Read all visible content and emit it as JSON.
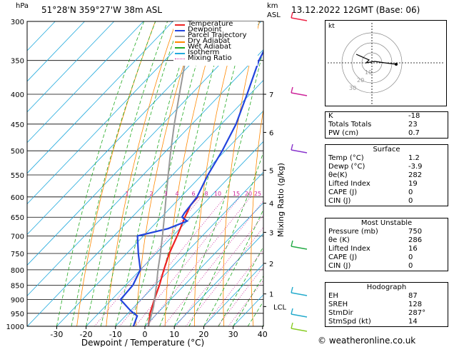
{
  "header": {
    "location": "51°28'N  359°27'W  38m  ASL",
    "hpa_unit": "hPa",
    "km_unit": "km",
    "asl_unit": "ASL",
    "datetime": "13.12.2022  12GMT  (Base: 06)"
  },
  "legend": [
    {
      "label": "Temperature",
      "color": "#ee2222",
      "style": "solid"
    },
    {
      "label": "Dewpoint",
      "color": "#2244dd",
      "style": "solid"
    },
    {
      "label": "Parcel Trajectory",
      "color": "#999999",
      "style": "solid"
    },
    {
      "label": "Dry Adiabat",
      "color": "#ff8800",
      "style": "solid"
    },
    {
      "label": "Wet Adiabat",
      "color": "#22aa22",
      "style": "solid"
    },
    {
      "label": "Isotherm",
      "color": "#22aadd",
      "style": "solid"
    },
    {
      "label": "Mixing Ratio",
      "color": "#cc2299",
      "style": "dotted"
    }
  ],
  "chart_data": {
    "type": "line",
    "title": "Skew-T log-P diagram",
    "xlabel": "Dewpoint / Temperature (°C)",
    "ylabel": "hPa",
    "y2label": "Mixing Ratio (g/kg)",
    "xlim": [
      -40,
      40
    ],
    "ylim": [
      1000,
      300
    ],
    "x_ticks": [
      "-30",
      "-20",
      "-10",
      "0",
      "10",
      "20",
      "30",
      "40"
    ],
    "pressure_levels": [
      "300",
      "350",
      "400",
      "450",
      "500",
      "550",
      "600",
      "650",
      "700",
      "750",
      "800",
      "850",
      "900",
      "950",
      "1000"
    ],
    "km_ticks": [
      {
        "label": "7",
        "p": 400
      },
      {
        "label": "6",
        "p": 465
      },
      {
        "label": "5",
        "p": 540
      },
      {
        "label": "4",
        "p": 615
      },
      {
        "label": "3",
        "p": 690
      },
      {
        "label": "2",
        "p": 780
      },
      {
        "label": "1",
        "p": 880
      },
      {
        "label": "LCL",
        "p": 925
      }
    ],
    "mixing_ratio_labels": [
      "1",
      "2",
      "3",
      "4",
      "6",
      "8",
      "10",
      "15",
      "20",
      "25"
    ],
    "series": [
      {
        "name": "Temperature",
        "color": "#ee2222",
        "points": [
          [
            1000,
            1.2
          ],
          [
            950,
            -2.5
          ],
          [
            900,
            -5.5
          ],
          [
            850,
            -8.5
          ],
          [
            800,
            -12
          ],
          [
            750,
            -15.5
          ],
          [
            700,
            -18.5
          ],
          [
            650,
            -22
          ],
          [
            620,
            -24
          ],
          [
            600,
            -24.2
          ]
        ]
      },
      {
        "name": "Dewpoint",
        "color": "#2244dd",
        "points": [
          [
            1000,
            -3.9
          ],
          [
            960,
            -6
          ],
          [
            940,
            -10
          ],
          [
            900,
            -17
          ],
          [
            850,
            -17.5
          ],
          [
            800,
            -20
          ],
          [
            750,
            -26
          ],
          [
            700,
            -32
          ],
          [
            680,
            -24
          ],
          [
            660,
            -20
          ],
          [
            650,
            -23
          ],
          [
            640,
            -23.5
          ],
          [
            600,
            -24.5
          ],
          [
            550,
            -28
          ],
          [
            500,
            -31
          ],
          [
            450,
            -35
          ],
          [
            400,
            -41
          ],
          [
            350,
            -48
          ],
          [
            300,
            -54
          ]
        ]
      },
      {
        "name": "Parcel Trajectory",
        "color": "#999999",
        "points": [
          [
            1000,
            1.2
          ],
          [
            925,
            -3.5
          ],
          [
            850,
            -9.5
          ],
          [
            800,
            -14
          ],
          [
            750,
            -18.5
          ],
          [
            700,
            -23.5
          ],
          [
            650,
            -29
          ],
          [
            600,
            -35
          ],
          [
            550,
            -41.5
          ],
          [
            500,
            -48.5
          ],
          [
            450,
            -56
          ],
          [
            400,
            -64
          ],
          [
            350,
            -73
          ],
          [
            300,
            -83
          ]
        ]
      }
    ]
  },
  "hodograph": {
    "label": "kt",
    "rings": [
      "10",
      "20",
      "30"
    ]
  },
  "indices": [
    {
      "label": "K",
      "value": "-18"
    },
    {
      "label": "Totals Totals",
      "value": "23"
    },
    {
      "label": "PW (cm)",
      "value": "0.7"
    }
  ],
  "surface": {
    "title": "Surface",
    "rows": [
      {
        "label": "Temp (°C)",
        "value": "1.2"
      },
      {
        "label": "Dewp (°C)",
        "value": "-3.9"
      },
      {
        "label": "θe(K)",
        "value": "282"
      },
      {
        "label": "Lifted Index",
        "value": "19"
      },
      {
        "label": "CAPE (J)",
        "value": "0"
      },
      {
        "label": "CIN (J)",
        "value": "0"
      }
    ]
  },
  "most_unstable": {
    "title": "Most Unstable",
    "rows": [
      {
        "label": "Pressure (mb)",
        "value": "750"
      },
      {
        "label": "θe (K)",
        "value": "286"
      },
      {
        "label": "Lifted Index",
        "value": "16"
      },
      {
        "label": "CAPE (J)",
        "value": "0"
      },
      {
        "label": "CIN (J)",
        "value": "0"
      }
    ]
  },
  "hodograph_table": {
    "title": "Hodograph",
    "rows": [
      {
        "label": "EH",
        "value": "87"
      },
      {
        "label": "SREH",
        "value": "128"
      },
      {
        "label": "StmDir",
        "value": "287°"
      },
      {
        "label": "StmSpd (kt)",
        "value": "14"
      }
    ]
  },
  "credit": "© weatheronline.co.uk",
  "colors": {
    "temperature": "#ee2222",
    "dewpoint": "#2244dd",
    "parcel": "#999999",
    "dry_adiabat": "#ff8800",
    "wet_adiabat": "#22aa22",
    "isotherm": "#22aadd",
    "mixing_ratio": "#cc2299"
  }
}
